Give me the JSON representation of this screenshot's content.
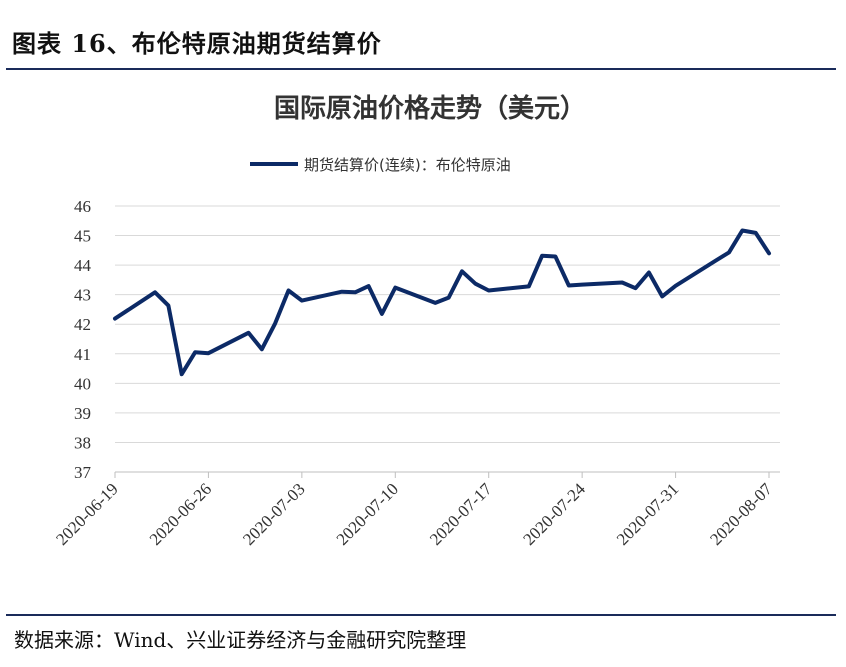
{
  "header": {
    "title": "图表 16、布伦特原油期货结算价"
  },
  "footer": {
    "source": "数据来源：Wind、兴业证券经济与金融研究院整理"
  },
  "colors": {
    "series": "#0c2a66",
    "rule": "#1a2b5a"
  },
  "chart_data": {
    "type": "line",
    "title": "国际原油价格走势（美元）",
    "xlabel": "",
    "ylabel": "",
    "ylim": [
      37,
      46
    ],
    "yticks": [
      37,
      38,
      39,
      40,
      41,
      42,
      43,
      44,
      45,
      46
    ],
    "xticks": [
      "2020-06-19",
      "2020-06-26",
      "2020-07-03",
      "2020-07-10",
      "2020-07-17",
      "2020-07-24",
      "2020-07-31",
      "2020-08-07"
    ],
    "grid": true,
    "legend_position": "top",
    "series": [
      {
        "name": "期货结算价(连续)：布伦特原油",
        "x": [
          "2020-06-19",
          "2020-06-22",
          "2020-06-23",
          "2020-06-24",
          "2020-06-25",
          "2020-06-26",
          "2020-06-29",
          "2020-06-30",
          "2020-07-01",
          "2020-07-02",
          "2020-07-03",
          "2020-07-06",
          "2020-07-07",
          "2020-07-08",
          "2020-07-09",
          "2020-07-10",
          "2020-07-13",
          "2020-07-14",
          "2020-07-15",
          "2020-07-16",
          "2020-07-17",
          "2020-07-20",
          "2020-07-21",
          "2020-07-22",
          "2020-07-23",
          "2020-07-24",
          "2020-07-27",
          "2020-07-28",
          "2020-07-29",
          "2020-07-30",
          "2020-07-31",
          "2020-08-03",
          "2020-08-04",
          "2020-08-05",
          "2020-08-06",
          "2020-08-07"
        ],
        "values": [
          42.19,
          43.08,
          42.63,
          40.31,
          41.05,
          41.02,
          41.71,
          41.15,
          42.03,
          43.14,
          42.8,
          43.1,
          43.08,
          43.29,
          42.35,
          43.24,
          42.72,
          42.9,
          43.79,
          43.37,
          43.14,
          43.28,
          44.32,
          44.29,
          43.31,
          43.34,
          43.41,
          43.22,
          43.75,
          42.94,
          43.3,
          44.15,
          44.43,
          45.17,
          45.09,
          44.4
        ]
      }
    ]
  }
}
